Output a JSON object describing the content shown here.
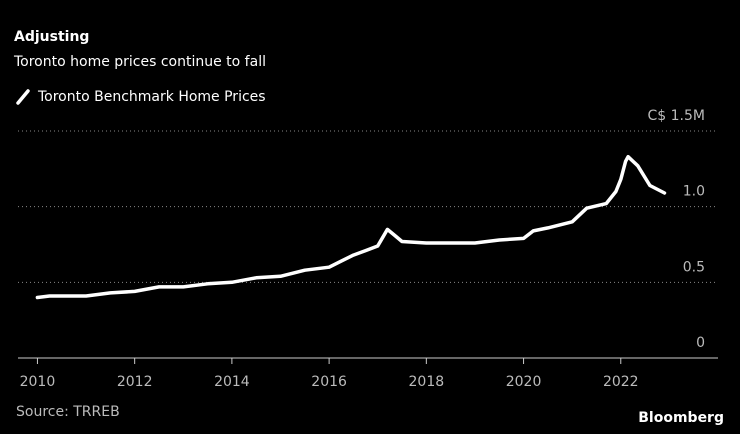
{
  "chart_data": {
    "type": "line",
    "title": "Adjusting",
    "subtitle": "Toronto home prices continue to fall",
    "source": "Source: TRREB",
    "brand": "Bloomberg",
    "x": [
      2010,
      2010.25,
      2010.5,
      2011,
      2011.5,
      2012,
      2012.5,
      2013,
      2013.5,
      2014,
      2014.5,
      2015,
      2015.5,
      2016,
      2016.25,
      2016.5,
      2016.75,
      2017,
      2017.2,
      2017.35,
      2017.5,
      2018,
      2018.5,
      2019,
      2019.5,
      2020,
      2020.2,
      2020.5,
      2021,
      2021.3,
      2021.7,
      2021.9,
      2022,
      2022.1,
      2022.15,
      2022.35,
      2022.6,
      2022.9
    ],
    "series": [
      {
        "name": "Toronto Benchmark Home Prices",
        "color": "#ffffff",
        "values": [
          0.4,
          0.41,
          0.41,
          0.41,
          0.43,
          0.44,
          0.47,
          0.47,
          0.49,
          0.5,
          0.53,
          0.54,
          0.58,
          0.6,
          0.64,
          0.68,
          0.71,
          0.74,
          0.85,
          0.81,
          0.77,
          0.76,
          0.76,
          0.76,
          0.78,
          0.79,
          0.84,
          0.86,
          0.9,
          0.99,
          1.02,
          1.1,
          1.18,
          1.3,
          1.33,
          1.27,
          1.14,
          1.09
        ]
      }
    ],
    "xlim": [
      2009.6,
      2024
    ],
    "xticks": [
      2010,
      2012,
      2014,
      2016,
      2018,
      2020,
      2022
    ],
    "ylim": [
      0,
      1.5
    ],
    "yticks": [
      0,
      0.5,
      {
        "value": 1,
        "label": "1.0"
      },
      {
        "value": 1.5,
        "label": "C$ 1.5M"
      }
    ],
    "grid": true
  }
}
